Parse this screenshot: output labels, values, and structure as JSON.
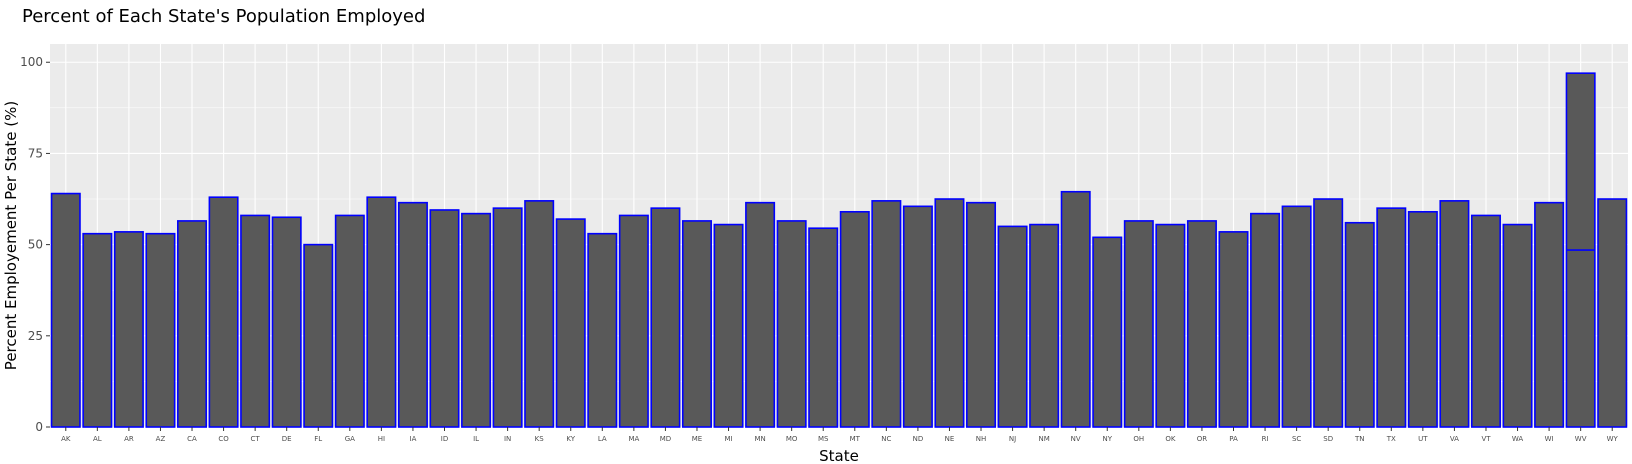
{
  "chart_data": {
    "type": "bar",
    "title": "Percent of Each State's Population Employed",
    "xlabel": "State",
    "ylabel": "Percent Employement Per State (%)",
    "ylim": [
      0,
      105
    ],
    "yticks": [
      "0",
      "25",
      "50",
      "75",
      "100"
    ],
    "grid": true,
    "categories": [
      "AK",
      "AL",
      "AR",
      "AZ",
      "CA",
      "CO",
      "CT",
      "DE",
      "FL",
      "GA",
      "HI",
      "IA",
      "ID",
      "IL",
      "IN",
      "KS",
      "KY",
      "LA",
      "MA",
      "MD",
      "ME",
      "MI",
      "MN",
      "MO",
      "MS",
      "MT",
      "NC",
      "ND",
      "NE",
      "NH",
      "NJ",
      "NM",
      "NV",
      "NY",
      "OH",
      "OK",
      "OR",
      "PA",
      "RI",
      "SC",
      "SD",
      "TN",
      "TX",
      "UT",
      "VA",
      "VT",
      "WA",
      "WI",
      "WV",
      "WY"
    ],
    "values": [
      64,
      53,
      53.5,
      53,
      56.5,
      63,
      58,
      57.5,
      50,
      58,
      63,
      61.5,
      59.5,
      58.5,
      60,
      62,
      57,
      53,
      58,
      60,
      56.5,
      55.5,
      61.5,
      56.5,
      54.5,
      59,
      62,
      60.5,
      62.5,
      61.5,
      55,
      55.5,
      64.5,
      52,
      56.5,
      55.5,
      56.5,
      53.5,
      58.5,
      60.5,
      62.5,
      56,
      60,
      59,
      62,
      58,
      55.5,
      61.5,
      97,
      62.5
    ],
    "stacked_segments": [
      {
        "category": "WV",
        "boundary": 48.5
      }
    ],
    "bar_fill": "#595959",
    "bar_outline": "#0000ff",
    "panel_background": "#ebebeb",
    "grid_color": "#ffffff"
  }
}
